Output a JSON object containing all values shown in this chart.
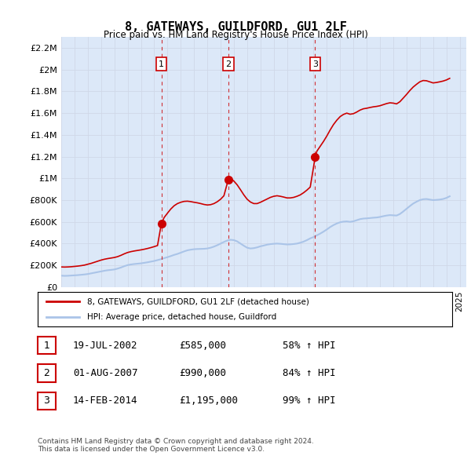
{
  "title": "8, GATEWAYS, GUILDFORD, GU1 2LF",
  "subtitle": "Price paid vs. HM Land Registry's House Price Index (HPI)",
  "ylabel_ticks": [
    "£0",
    "£200K",
    "£400K",
    "£600K",
    "£800K",
    "£1M",
    "£1.2M",
    "£1.4M",
    "£1.6M",
    "£1.8M",
    "£2M",
    "£2.2M"
  ],
  "ytick_values": [
    0,
    200000,
    400000,
    600000,
    800000,
    1000000,
    1200000,
    1400000,
    1600000,
    1800000,
    2000000,
    2200000
  ],
  "ylim": [
    0,
    2300000
  ],
  "xlim_start": 1995.0,
  "xlim_end": 2025.5,
  "grid_color": "#d0d8e8",
  "background_color": "#dce8f8",
  "plot_bg_color": "#dce8f8",
  "hpi_color": "#aac4e8",
  "price_color": "#cc0000",
  "sale_marker_color": "#cc0000",
  "vline_color": "#cc0000",
  "annotation_box_color": "#cc0000",
  "sales": [
    {
      "date_year": 2002.54,
      "price": 585000,
      "label": "1"
    },
    {
      "date_year": 2007.58,
      "price": 990000,
      "label": "2"
    },
    {
      "date_year": 2014.12,
      "price": 1195000,
      "label": "3"
    }
  ],
  "legend_line1": "8, GATEWAYS, GUILDFORD, GU1 2LF (detached house)",
  "legend_line2": "HPI: Average price, detached house, Guildford",
  "table_rows": [
    {
      "num": "1",
      "date": "19-JUL-2002",
      "price": "£585,000",
      "hpi": "58% ↑ HPI"
    },
    {
      "num": "2",
      "date": "01-AUG-2007",
      "price": "£990,000",
      "hpi": "84% ↑ HPI"
    },
    {
      "num": "3",
      "date": "14-FEB-2014",
      "price": "£1,195,000",
      "hpi": "99% ↑ HPI"
    }
  ],
  "footer": "Contains HM Land Registry data © Crown copyright and database right 2024.\nThis data is licensed under the Open Government Licence v3.0.",
  "hpi_data_x": [
    1995.0,
    1995.25,
    1995.5,
    1995.75,
    1996.0,
    1996.25,
    1996.5,
    1996.75,
    1997.0,
    1997.25,
    1997.5,
    1997.75,
    1998.0,
    1998.25,
    1998.5,
    1998.75,
    1999.0,
    1999.25,
    1999.5,
    1999.75,
    2000.0,
    2000.25,
    2000.5,
    2000.75,
    2001.0,
    2001.25,
    2001.5,
    2001.75,
    2002.0,
    2002.25,
    2002.5,
    2002.75,
    2003.0,
    2003.25,
    2003.5,
    2003.75,
    2004.0,
    2004.25,
    2004.5,
    2004.75,
    2005.0,
    2005.25,
    2005.5,
    2005.75,
    2006.0,
    2006.25,
    2006.5,
    2006.75,
    2007.0,
    2007.25,
    2007.5,
    2007.75,
    2008.0,
    2008.25,
    2008.5,
    2008.75,
    2009.0,
    2009.25,
    2009.5,
    2009.75,
    2010.0,
    2010.25,
    2010.5,
    2010.75,
    2011.0,
    2011.25,
    2011.5,
    2011.75,
    2012.0,
    2012.25,
    2012.5,
    2012.75,
    2013.0,
    2013.25,
    2013.5,
    2013.75,
    2014.0,
    2014.25,
    2014.5,
    2014.75,
    2015.0,
    2015.25,
    2015.5,
    2015.75,
    2016.0,
    2016.25,
    2016.5,
    2016.75,
    2017.0,
    2017.25,
    2017.5,
    2017.75,
    2018.0,
    2018.25,
    2018.5,
    2018.75,
    2019.0,
    2019.25,
    2019.5,
    2019.75,
    2020.0,
    2020.25,
    2020.5,
    2020.75,
    2021.0,
    2021.25,
    2021.5,
    2021.75,
    2022.0,
    2022.25,
    2022.5,
    2022.75,
    2023.0,
    2023.25,
    2023.5,
    2023.75,
    2024.0,
    2024.25
  ],
  "hpi_data_y": [
    105000,
    103000,
    104000,
    106000,
    108000,
    110000,
    113000,
    116000,
    120000,
    126000,
    132000,
    138000,
    144000,
    150000,
    155000,
    158000,
    162000,
    170000,
    180000,
    192000,
    202000,
    208000,
    212000,
    215000,
    218000,
    223000,
    228000,
    234000,
    240000,
    248000,
    256000,
    266000,
    275000,
    285000,
    296000,
    305000,
    316000,
    328000,
    338000,
    344000,
    348000,
    350000,
    351000,
    352000,
    355000,
    362000,
    372000,
    385000,
    400000,
    415000,
    428000,
    435000,
    432000,
    420000,
    400000,
    380000,
    362000,
    355000,
    358000,
    365000,
    375000,
    382000,
    390000,
    395000,
    398000,
    400000,
    398000,
    395000,
    392000,
    393000,
    396000,
    400000,
    408000,
    418000,
    432000,
    448000,
    460000,
    476000,
    492000,
    510000,
    530000,
    552000,
    570000,
    585000,
    596000,
    602000,
    604000,
    600000,
    605000,
    615000,
    625000,
    630000,
    632000,
    635000,
    638000,
    640000,
    645000,
    652000,
    658000,
    662000,
    660000,
    658000,
    672000,
    695000,
    720000,
    745000,
    768000,
    785000,
    800000,
    808000,
    810000,
    805000,
    800000,
    802000,
    805000,
    810000,
    820000,
    835000
  ],
  "price_data_x": [
    1995.0,
    1995.25,
    1995.5,
    1995.75,
    1996.0,
    1996.25,
    1996.5,
    1996.75,
    1997.0,
    1997.25,
    1997.5,
    1997.75,
    1998.0,
    1998.25,
    1998.5,
    1998.75,
    1999.0,
    1999.25,
    1999.5,
    1999.75,
    2000.0,
    2000.25,
    2000.5,
    2000.75,
    2001.0,
    2001.25,
    2001.5,
    2001.75,
    2002.0,
    2002.25,
    2002.54,
    2002.75,
    2003.0,
    2003.25,
    2003.5,
    2003.75,
    2004.0,
    2004.25,
    2004.5,
    2004.75,
    2005.0,
    2005.25,
    2005.5,
    2005.75,
    2006.0,
    2006.25,
    2006.5,
    2006.75,
    2007.0,
    2007.25,
    2007.58,
    2007.75,
    2008.0,
    2008.25,
    2008.5,
    2008.75,
    2009.0,
    2009.25,
    2009.5,
    2009.75,
    2010.0,
    2010.25,
    2010.5,
    2010.75,
    2011.0,
    2011.25,
    2011.5,
    2011.75,
    2012.0,
    2012.25,
    2012.5,
    2012.75,
    2013.0,
    2013.25,
    2013.5,
    2013.75,
    2014.12,
    2014.25,
    2014.5,
    2014.75,
    2015.0,
    2015.25,
    2015.5,
    2015.75,
    2016.0,
    2016.25,
    2016.5,
    2016.75,
    2017.0,
    2017.25,
    2017.5,
    2017.75,
    2018.0,
    2018.25,
    2018.5,
    2018.75,
    2019.0,
    2019.25,
    2019.5,
    2019.75,
    2020.0,
    2020.25,
    2020.5,
    2020.75,
    2021.0,
    2021.25,
    2021.5,
    2021.75,
    2022.0,
    2022.25,
    2022.5,
    2022.75,
    2023.0,
    2023.25,
    2023.5,
    2023.75,
    2024.0,
    2024.25
  ],
  "price_data_y": [
    185000,
    184000,
    185000,
    187000,
    190000,
    193000,
    197000,
    202000,
    210000,
    218000,
    228000,
    238000,
    248000,
    256000,
    262000,
    267000,
    272000,
    280000,
    292000,
    306000,
    318000,
    326000,
    332000,
    337000,
    342000,
    348000,
    355000,
    363000,
    372000,
    382000,
    585000,
    640000,
    680000,
    718000,
    748000,
    768000,
    780000,
    788000,
    790000,
    786000,
    780000,
    775000,
    768000,
    760000,
    755000,
    758000,
    768000,
    785000,
    808000,
    840000,
    990000,
    1000000,
    975000,
    940000,
    895000,
    848000,
    808000,
    782000,
    768000,
    768000,
    780000,
    795000,
    810000,
    825000,
    835000,
    840000,
    835000,
    828000,
    820000,
    820000,
    825000,
    835000,
    848000,
    868000,
    892000,
    920000,
    1195000,
    1250000,
    1295000,
    1340000,
    1390000,
    1445000,
    1495000,
    1535000,
    1568000,
    1588000,
    1600000,
    1590000,
    1595000,
    1610000,
    1628000,
    1640000,
    1645000,
    1652000,
    1658000,
    1662000,
    1668000,
    1678000,
    1688000,
    1695000,
    1692000,
    1685000,
    1705000,
    1738000,
    1772000,
    1808000,
    1840000,
    1865000,
    1888000,
    1900000,
    1898000,
    1888000,
    1878000,
    1882000,
    1888000,
    1895000,
    1905000,
    1920000
  ]
}
